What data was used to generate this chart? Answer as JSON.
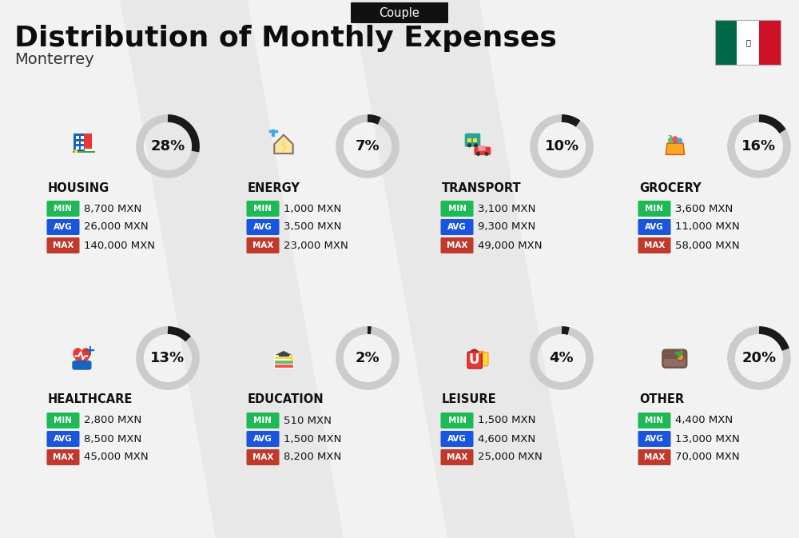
{
  "title": "Distribution of Monthly Expenses",
  "subtitle": "Monterrey",
  "badge": "Couple",
  "bg_color": "#f2f2f2",
  "categories": [
    {
      "name": "HOUSING",
      "pct": 28,
      "min": "8,700 MXN",
      "avg": "26,000 MXN",
      "max": "140,000 MXN",
      "row": 0,
      "col": 0
    },
    {
      "name": "ENERGY",
      "pct": 7,
      "min": "1,000 MXN",
      "avg": "3,500 MXN",
      "max": "23,000 MXN",
      "row": 0,
      "col": 1
    },
    {
      "name": "TRANSPORT",
      "pct": 10,
      "min": "3,100 MXN",
      "avg": "9,300 MXN",
      "max": "49,000 MXN",
      "row": 0,
      "col": 2
    },
    {
      "name": "GROCERY",
      "pct": 16,
      "min": "3,600 MXN",
      "avg": "11,000 MXN",
      "max": "58,000 MXN",
      "row": 0,
      "col": 3
    },
    {
      "name": "HEALTHCARE",
      "pct": 13,
      "min": "2,800 MXN",
      "avg": "8,500 MXN",
      "max": "45,000 MXN",
      "row": 1,
      "col": 0
    },
    {
      "name": "EDUCATION",
      "pct": 2,
      "min": "510 MXN",
      "avg": "1,500 MXN",
      "max": "8,200 MXN",
      "row": 1,
      "col": 1
    },
    {
      "name": "LEISURE",
      "pct": 4,
      "min": "1,500 MXN",
      "avg": "4,600 MXN",
      "max": "25,000 MXN",
      "row": 1,
      "col": 2
    },
    {
      "name": "OTHER",
      "pct": 20,
      "min": "4,400 MXN",
      "avg": "13,000 MXN",
      "max": "70,000 MXN",
      "row": 1,
      "col": 3
    }
  ],
  "color_min": "#1db954",
  "color_avg": "#1a56db",
  "color_max": "#c0392b",
  "arc_color": "#1a1a1a",
  "arc_bg_color": "#cccccc",
  "flag_green": "#006847",
  "flag_white": "#ffffff",
  "flag_red": "#ce1126",
  "icon_colors": {
    "HOUSING": [
      "#1565c0",
      "#e53935",
      "#43a047",
      "#fdd835"
    ],
    "ENERGY": [
      "#fdd835",
      "#8d6e63",
      "#42a5f5"
    ],
    "TRANSPORT": [
      "#26a69a",
      "#fdd835",
      "#e53935"
    ],
    "GROCERY": [
      "#f9a825",
      "#66bb6a",
      "#ef5350",
      "#42a5f5"
    ],
    "HEALTHCARE": [
      "#e53935",
      "#1565c0",
      "#43a047"
    ],
    "EDUCATION": [
      "#5c6bc0",
      "#ef5350",
      "#fdd835",
      "#66bb6a"
    ],
    "LEISURE": [
      "#e53935",
      "#fdd835",
      "#ef9a9a"
    ],
    "OTHER": [
      "#8d6e63",
      "#fdd835",
      "#66bb6a"
    ]
  }
}
